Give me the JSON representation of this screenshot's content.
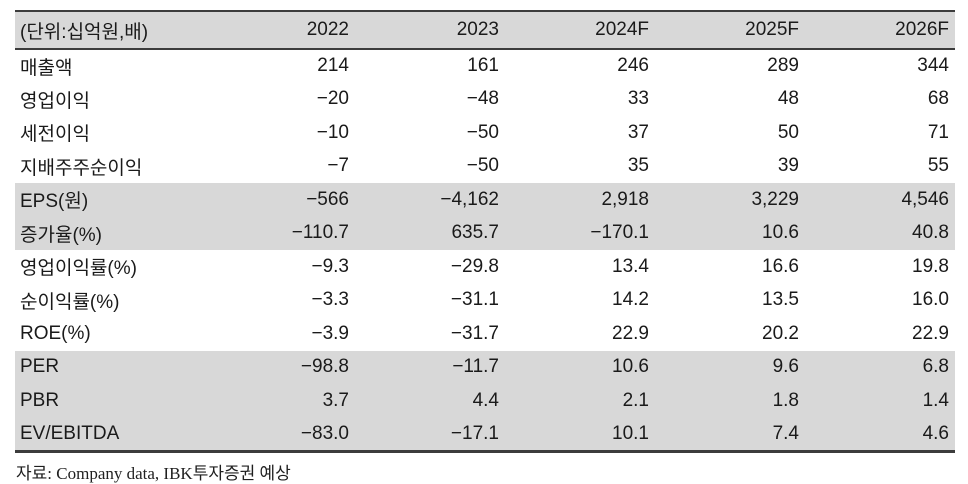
{
  "table": {
    "unit_header": "(단위:십억원,배)",
    "columns": [
      "2022",
      "2023",
      "2024F",
      "2025F",
      "2026F"
    ],
    "rows": [
      {
        "label": "매출액",
        "values": [
          "214",
          "161",
          "246",
          "289",
          "344"
        ],
        "shaded": false
      },
      {
        "label": "영업이익",
        "values": [
          "−20",
          "−48",
          "33",
          "48",
          "68"
        ],
        "shaded": false
      },
      {
        "label": "세전이익",
        "values": [
          "−10",
          "−50",
          "37",
          "50",
          "71"
        ],
        "shaded": false
      },
      {
        "label": "지배주주순이익",
        "values": [
          "−7",
          "−50",
          "35",
          "39",
          "55"
        ],
        "shaded": false
      },
      {
        "label": "EPS(원)",
        "values": [
          "−566",
          "−4,162",
          "2,918",
          "3,229",
          "4,546"
        ],
        "shaded": true
      },
      {
        "label": "증가율(%)",
        "values": [
          "−110.7",
          "635.7",
          "−170.1",
          "10.6",
          "40.8"
        ],
        "shaded": true
      },
      {
        "label": "영업이익률(%)",
        "values": [
          "−9.3",
          "−29.8",
          "13.4",
          "16.6",
          "19.8"
        ],
        "shaded": false
      },
      {
        "label": "순이익률(%)",
        "values": [
          "−3.3",
          "−31.1",
          "14.2",
          "13.5",
          "16.0"
        ],
        "shaded": false
      },
      {
        "label": "ROE(%)",
        "values": [
          "−3.9",
          "−31.7",
          "22.9",
          "20.2",
          "22.9"
        ],
        "shaded": false
      },
      {
        "label": "PER",
        "values": [
          "−98.8",
          "−11.7",
          "10.6",
          "9.6",
          "6.8"
        ],
        "shaded": true
      },
      {
        "label": "PBR",
        "values": [
          "3.7",
          "4.4",
          "2.1",
          "1.8",
          "1.4"
        ],
        "shaded": true
      },
      {
        "label": "EV/EBITDA",
        "values": [
          "−83.0",
          "−17.1",
          "10.1",
          "7.4",
          "4.6"
        ],
        "shaded": true
      }
    ],
    "source_note": "자료: Company data, IBK투자증권 예상"
  },
  "colors": {
    "shaded_row_bg": "#d8d8d8",
    "border_dark": "#3c3c3c",
    "text": "#1a1a1a"
  }
}
